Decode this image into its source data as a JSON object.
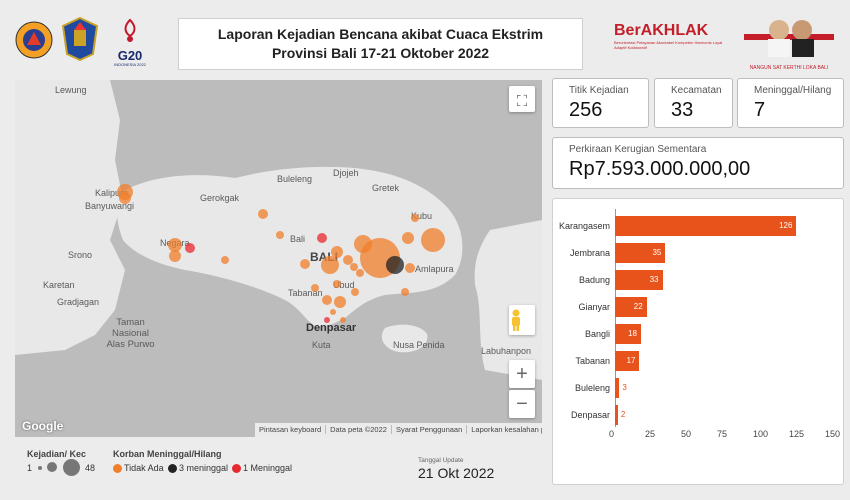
{
  "header": {
    "title_line1": "Laporan Kejadian Bencana akibat Cuaca Ekstrim",
    "title_line2": "Provinsi Bali 17-21 Oktober 2022",
    "g20_label": "G20",
    "g20_sub": "INDONESIA 2022",
    "berakhlak_label": "BerAKHLAK",
    "berakhlak_sub": "Berorientasi Pelayanan Akuntabel Kompeten Harmonis Loyal Adaptif Kolaboratif",
    "governor_caption": "NANGUN SAT KERTHI LOKA BALI"
  },
  "map": {
    "labels": {
      "lewung": "Lewung",
      "kalipuro": "Kalipuro",
      "banyuwangi": "Banyuwangi",
      "gerokgak": "Gerokgak",
      "buleleng": "Buleleng",
      "djojeh": "Djojeh",
      "gretek": "Gretek",
      "kubu": "Kubu",
      "negara": "Negara",
      "sronoo": "Srono",
      "bali_small": "Bali",
      "bali_big": "BALI",
      "amlapura": "Amlapura",
      "karetan": "Karetan",
      "gradjagan": "Gradjagan",
      "tabanan": "Tabanan",
      "ubud": "Ubud",
      "taman": "Taman Nasional Alas Purwo",
      "denpasar": "Denpasar",
      "kuta": "Kuta",
      "nusa_penida": "Nusa Penida",
      "labuhan": "Labuhanpon"
    },
    "footer": [
      "Pintasan keyboard",
      "Data peta ©2022",
      "Syarat Penggunaan",
      "Laporkan kesalahan peta"
    ],
    "google_label": "Google",
    "fullscreen_icon": "fullscreen-icon",
    "pegman_icon": "pegman-icon",
    "zoom_in": "+",
    "zoom_out": "−"
  },
  "legend": {
    "kejadian_title": "Kejadian/ Kec",
    "kejadian_min": "1",
    "kejadian_max": "48",
    "korban_title": "Korban Meninggal/Hilang",
    "items": [
      {
        "label": "Tidak Ada",
        "color": "#f07f2b"
      },
      {
        "label": "3 meninggal",
        "color": "#222222"
      },
      {
        "label": "1 Meninggal",
        "color": "#e8282f"
      }
    ],
    "update_label": "Tanggal Update",
    "update_value": "21 Okt 2022"
  },
  "stats": {
    "titik_label": "Titik Kejadian",
    "titik_value": "256",
    "kecamatan_label": "Kecamatan",
    "kecamatan_value": "33",
    "meninggal_label": "Meninggal/Hilang",
    "meninggal_value": "7",
    "kerugian_label": "Perkiraan Kerugian Sementara",
    "kerugian_value": "Rp7.593.000.000,00"
  },
  "chart_data": {
    "type": "bar",
    "orientation": "horizontal",
    "categories": [
      "Karangasem",
      "Jembrana",
      "Badung",
      "Gianyar",
      "Bangli",
      "Tabanan",
      "Buleleng",
      "Denpasar"
    ],
    "values": [
      126,
      35,
      33,
      22,
      18,
      17,
      3,
      2
    ],
    "xlim": [
      0,
      150
    ],
    "xticks": [
      "0",
      "25",
      "50",
      "75",
      "100",
      "125",
      "150"
    ],
    "bar_color": "#e8531b"
  }
}
